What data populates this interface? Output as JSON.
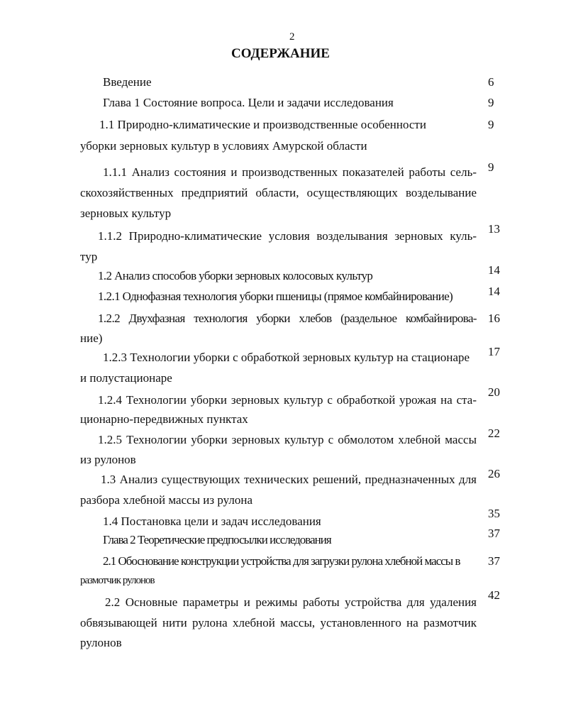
{
  "page_number": "2",
  "title": "СОДЕРЖАНИЕ",
  "entries": [
    {
      "lines": [
        "Введение"
      ],
      "page": "6"
    },
    {
      "lines": [
        "Глава 1 Состояние вопроса. Цели и задачи исследования"
      ],
      "page": "9"
    },
    {
      "lines": [
        "1.1 Природно-климатические и производственные особенности",
        "уборки зерновых культур в условиях Амурской области"
      ],
      "page": "9"
    },
    {
      "lines": [
        "1.1.1 Анализ состояния и производственных показателей работы сель-",
        "скохозяйственных предприятий области, осуществляющих возделывание",
        "зерновых культур"
      ],
      "page": "9"
    },
    {
      "lines": [
        "1.1.2 Природно-климатические условия возделывания зерновых куль-",
        "тур"
      ],
      "page": "13"
    },
    {
      "lines": [
        "1.2 Анализ способов уборки зерновых колосовых культур"
      ],
      "page": "14"
    },
    {
      "lines": [
        "1.2.1 Однофазная технология уборки пшеницы (прямое комбайнирование)"
      ],
      "page": "14"
    },
    {
      "lines": [
        "1.2.2 Двухфазная технология уборки хлебов (раздельное комбайнирова-",
        "ние)"
      ],
      "page": "16"
    },
    {
      "lines": [
        "1.2.3 Технологии уборки с обработкой зерновых культур на стационаре",
        "и полустационаре"
      ],
      "page": "17"
    },
    {
      "lines": [
        "1.2.4 Технологии уборки зерновых культур с обработкой урожая на ста-",
        "ционарно-передвижных пунктах"
      ],
      "page": "20"
    },
    {
      "lines": [
        "1.2.5 Технологии уборки зерновых культур с обмолотом хлебной массы",
        "из рулонов"
      ],
      "page": "22"
    },
    {
      "lines": [
        "1.3 Анализ существующих технических решений, предназначенных для",
        "разбора хлебной массы из рулона"
      ],
      "page": "26"
    },
    {
      "lines": [
        "1.4 Постановка цели и задач исследования"
      ],
      "page": "35"
    },
    {
      "lines": [
        "Глава 2 Теоретические предпосылки исследования"
      ],
      "page": "37"
    },
    {
      "lines": [
        "2.1 Обоснование конструкции устройства для загрузки рулона хлебной массы в",
        "размотчик рулонов"
      ],
      "page": "37"
    },
    {
      "lines": [
        "2.2 Основные параметры и режимы работы устройства для удаления",
        "обвязывающей нити рулона хлебной массы, установленного на размотчик",
        "рулонов"
      ],
      "page": "42"
    }
  ]
}
